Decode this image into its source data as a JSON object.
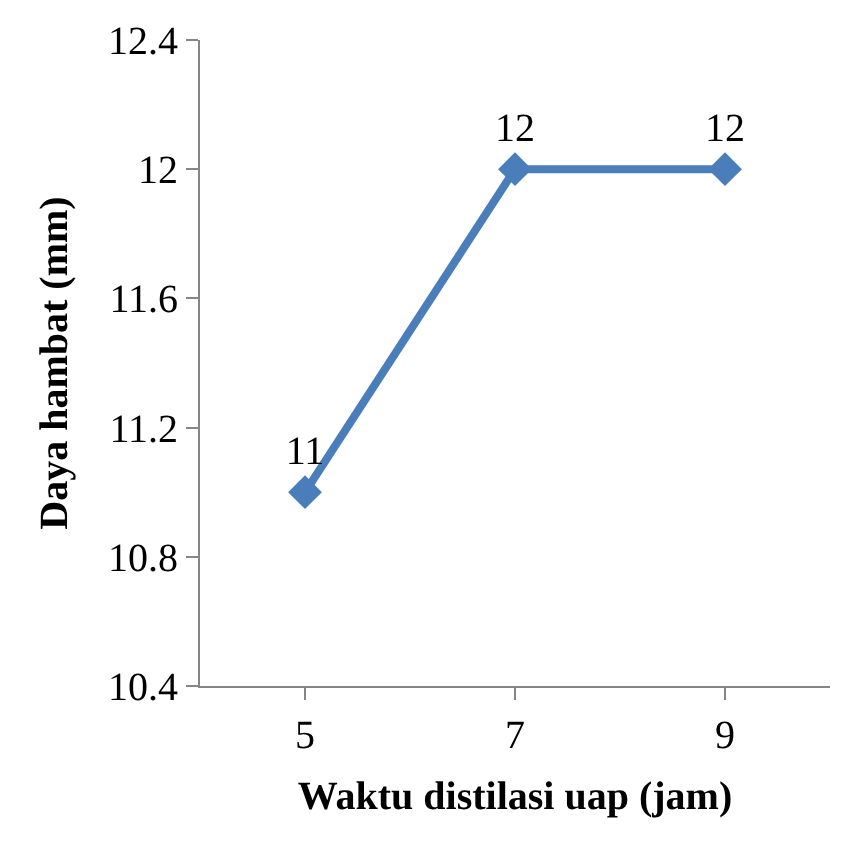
{
  "chart_data": {
    "type": "line",
    "xlabel": "Waktu distilasi uap (jam)",
    "ylabel": "Daya hambat (mm)",
    "categories": [
      "5",
      "7",
      "9"
    ],
    "series": [
      {
        "color": "#4a7ebb",
        "values": [
          11,
          12,
          12
        ]
      }
    ],
    "ylim": [
      10.4,
      12.4
    ],
    "yticks": [
      10.4,
      10.8,
      11.2,
      11.6,
      12,
      12.4
    ],
    "grid": false,
    "legend": false,
    "marker": "diamond",
    "line_style": "solid",
    "data_labels": true
  }
}
